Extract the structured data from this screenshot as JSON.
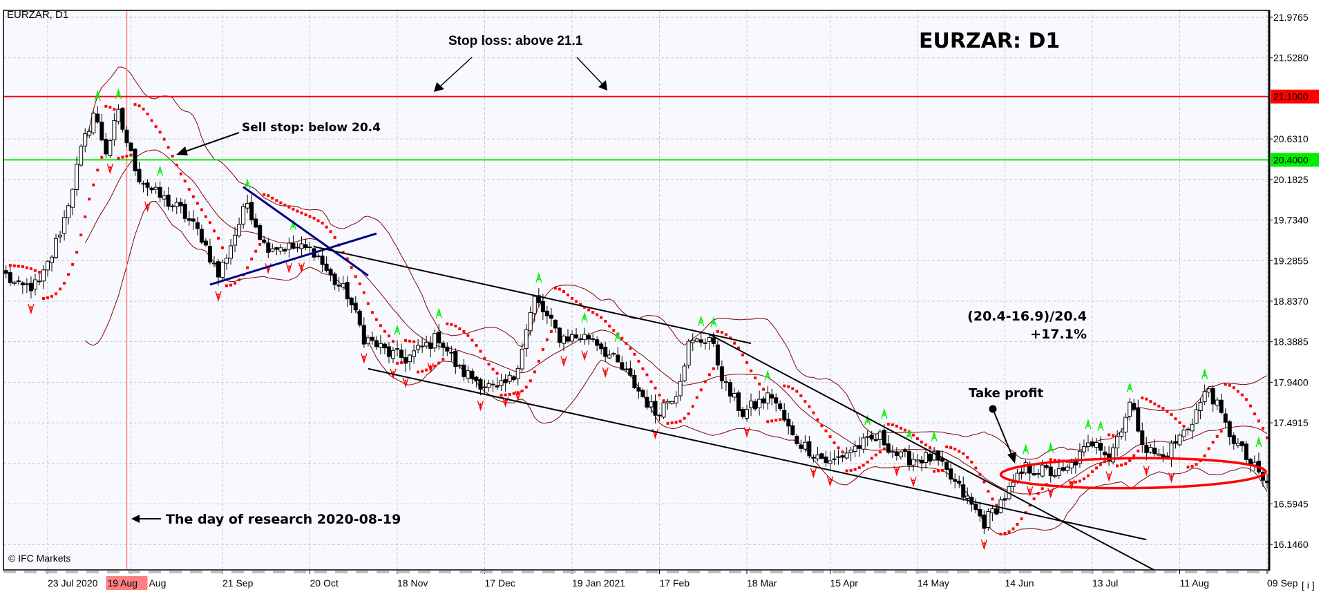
{
  "window": {
    "symbol_label": "EURZAR, D1",
    "copyright": "© IFC Markets",
    "corner_button": "[ i ]"
  },
  "chart_data": {
    "type": "candlestick",
    "title": "EURZAR: D1",
    "symbol": "EURZAR",
    "timeframe": "D1",
    "grid": true,
    "ylim": [
      16.03,
      22.07
    ],
    "y_ticks": [
      "21.9765",
      "21.5280",
      "20.6310",
      "20.1825",
      "19.7340",
      "19.2855",
      "18.8370",
      "18.3885",
      "17.9400",
      "17.4915",
      "16.5945",
      "16.1460"
    ],
    "hidden_grid_level": "17.0430",
    "x_ticks": [
      {
        "label": "23 Jul 2020",
        "date": "2020-07-23"
      },
      {
        "label": "Aug",
        "date": "2020-08-20"
      },
      {
        "label": "21 Sep",
        "date": "2020-09-21"
      },
      {
        "label": "20 Oct",
        "date": "2020-10-20"
      },
      {
        "label": "18 Nov",
        "date": "2020-11-18"
      },
      {
        "label": "17 Dec",
        "date": "2020-12-17"
      },
      {
        "label": "19 Jan 2021",
        "date": "2021-01-19"
      },
      {
        "label": "17 Feb",
        "date": "2021-02-17"
      },
      {
        "label": "18 Mar",
        "date": "2021-03-18"
      },
      {
        "label": "15 Apr",
        "date": "2021-04-15"
      },
      {
        "label": "14 May",
        "date": "2021-05-14"
      },
      {
        "label": "14 Jun",
        "date": "2021-06-14"
      },
      {
        "label": "13 Jul",
        "date": "2021-07-13"
      },
      {
        "label": "11 Aug",
        "date": "2021-08-11"
      },
      {
        "label": "09 Sep",
        "date": "2021-09-09"
      }
    ],
    "research_date": {
      "label": "19 Aug",
      "date": "2020-08-19",
      "color": "#ff8080"
    },
    "levels": [
      {
        "label": "21.1000",
        "value": 21.1,
        "color": "#ff0000"
      },
      {
        "label": "20.4000",
        "value": 20.4,
        "color": "#00ee00"
      }
    ],
    "price_path": [
      {
        "date": "2020-07-09",
        "close": 19.12
      },
      {
        "date": "2020-07-14",
        "close": 18.98
      },
      {
        "date": "2020-07-21",
        "close": 19.02
      },
      {
        "date": "2020-07-24",
        "close": 19.35
      },
      {
        "date": "2020-07-29",
        "close": 19.75
      },
      {
        "date": "2020-08-04",
        "close": 20.49
      },
      {
        "date": "2020-08-07",
        "close": 20.92
      },
      {
        "date": "2020-08-12",
        "close": 20.5
      },
      {
        "date": "2020-08-17",
        "close": 20.9
      },
      {
        "date": "2020-08-20",
        "close": 20.45
      },
      {
        "date": "2020-08-24",
        "close": 20.21
      },
      {
        "date": "2020-08-28",
        "close": 20.02
      },
      {
        "date": "2020-09-07",
        "close": 19.84
      },
      {
        "date": "2020-09-14",
        "close": 19.55
      },
      {
        "date": "2020-09-18",
        "close": 19.12
      },
      {
        "date": "2020-09-29",
        "close": 19.93
      },
      {
        "date": "2020-10-05",
        "close": 19.46
      },
      {
        "date": "2020-10-13",
        "close": 19.43
      },
      {
        "date": "2020-10-21",
        "close": 19.4
      },
      {
        "date": "2020-10-27",
        "close": 19.1
      },
      {
        "date": "2020-11-02",
        "close": 18.91
      },
      {
        "date": "2020-11-06",
        "close": 18.44
      },
      {
        "date": "2020-11-16",
        "close": 18.26
      },
      {
        "date": "2020-11-20",
        "close": 18.2
      },
      {
        "date": "2020-12-02",
        "close": 18.44
      },
      {
        "date": "2020-12-09",
        "close": 18.07
      },
      {
        "date": "2020-12-22",
        "close": 17.84
      },
      {
        "date": "2020-12-29",
        "close": 18.0
      },
      {
        "date": "2021-01-06",
        "close": 18.86
      },
      {
        "date": "2021-01-14",
        "close": 18.44
      },
      {
        "date": "2021-01-26",
        "close": 18.44
      },
      {
        "date": "2021-02-05",
        "close": 18.03
      },
      {
        "date": "2021-02-16",
        "close": 17.6
      },
      {
        "date": "2021-02-23",
        "close": 17.84
      },
      {
        "date": "2021-02-26",
        "close": 18.35
      },
      {
        "date": "2021-03-05",
        "close": 18.44
      },
      {
        "date": "2021-03-11",
        "close": 17.88
      },
      {
        "date": "2021-03-17",
        "close": 17.6
      },
      {
        "date": "2021-03-26",
        "close": 17.8
      },
      {
        "date": "2021-04-02",
        "close": 17.33
      },
      {
        "date": "2021-04-15",
        "close": 17.04
      },
      {
        "date": "2021-04-22",
        "close": 17.2
      },
      {
        "date": "2021-05-03",
        "close": 17.33
      },
      {
        "date": "2021-05-10",
        "close": 17.1
      },
      {
        "date": "2021-05-20",
        "close": 17.1
      },
      {
        "date": "2021-05-28",
        "close": 16.76
      },
      {
        "date": "2021-06-07",
        "close": 16.39
      },
      {
        "date": "2021-06-14",
        "close": 16.67
      },
      {
        "date": "2021-06-21",
        "close": 16.99
      },
      {
        "date": "2021-07-02",
        "close": 16.92
      },
      {
        "date": "2021-07-14",
        "close": 17.33
      },
      {
        "date": "2021-07-19",
        "close": 17.1
      },
      {
        "date": "2021-07-26",
        "close": 17.7
      },
      {
        "date": "2021-07-30",
        "close": 17.2
      },
      {
        "date": "2021-08-05",
        "close": 17.1
      },
      {
        "date": "2021-08-13",
        "close": 17.45
      },
      {
        "date": "2021-08-20",
        "close": 17.88
      },
      {
        "date": "2021-08-26",
        "close": 17.45
      },
      {
        "date": "2021-09-02",
        "close": 17.1
      },
      {
        "date": "2021-09-09",
        "close": 16.8
      }
    ],
    "trendlines": [
      {
        "name": "triangle-line-down",
        "color": "#000080",
        "from": {
          "date": "2020-09-28",
          "price": 20.1
        },
        "to": {
          "date": "2020-11-09",
          "price": 19.12
        }
      },
      {
        "name": "triangle-line-up",
        "color": "#000080",
        "from": {
          "date": "2020-09-16",
          "price": 19.02
        },
        "to": {
          "date": "2020-11-11",
          "price": 19.585
        }
      },
      {
        "name": "channel-upper",
        "color": "#000000",
        "from": {
          "date": "2020-10-21",
          "price": 19.44
        },
        "to": {
          "date": "2021-03-19",
          "price": 18.37
        }
      },
      {
        "name": "channel-lower",
        "color": "#000000",
        "from": {
          "date": "2020-11-09",
          "price": 18.09
        },
        "to": {
          "date": "2021-07-30",
          "price": 16.2
        }
      },
      {
        "name": "resistance-line",
        "color": "#000000",
        "from": {
          "date": "2021-03-05",
          "price": 18.47
        },
        "to": {
          "date": "2021-08-03",
          "price": 15.86
        }
      }
    ],
    "target_zone": {
      "from_date": "2021-06-14",
      "to_date": "2021-09-09",
      "low": 16.77,
      "high": 17.1,
      "color": "#ff0000"
    },
    "indicator_colors": {
      "bollinger": "#800000",
      "sar": "#ff0000",
      "fractal_up": "#00ee00",
      "fractal_down": "#ff0000"
    },
    "annotations": {
      "stop_loss": "Stop loss: above 21.1",
      "sell_stop": "Sell stop: below 20.4",
      "research": "The day of research 2020-08-19",
      "formula": "(20.4-16.9)/20.4",
      "gain": "+17.1%",
      "take_profit": "Take profit"
    }
  }
}
